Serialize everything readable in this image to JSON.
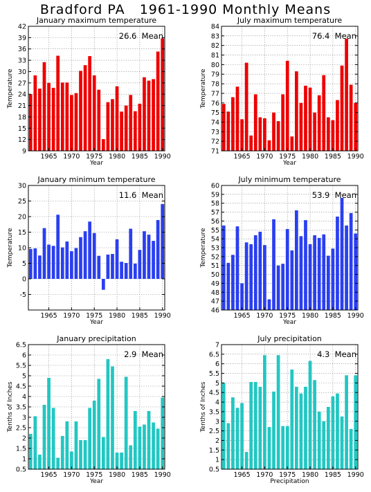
{
  "page_title": "Bradford PA   1961-1990 Monthly Means",
  "chart_data": [
    {
      "type": "bar",
      "title": "January maximum temperature",
      "mean_label": "26.6  Mean",
      "xlabel": "Year",
      "ylabel": "Temperature",
      "color": "#ee0000",
      "ylim": [
        9,
        42
      ],
      "yticks": [
        9,
        12,
        15,
        18,
        21,
        24,
        27,
        30,
        33,
        36,
        39,
        42
      ],
      "ytick_labels": [
        "9",
        "12",
        "15",
        "18",
        "21",
        "24",
        "27",
        "30",
        "33",
        "36",
        "39",
        "42"
      ],
      "xlim": [
        1960.5,
        1990.5
      ],
      "xticks": [
        1965,
        1970,
        1975,
        1980,
        1985,
        1990
      ],
      "xtick_labels": [
        "1965",
        "1970",
        "1975",
        "1980",
        "1985",
        "1990"
      ],
      "years": [
        1961,
        1962,
        1963,
        1964,
        1965,
        1966,
        1967,
        1968,
        1969,
        1970,
        1971,
        1972,
        1973,
        1974,
        1975,
        1976,
        1977,
        1978,
        1979,
        1980,
        1981,
        1982,
        1983,
        1984,
        1985,
        1986,
        1987,
        1988,
        1989,
        1990
      ],
      "values": [
        24,
        29,
        25.5,
        32.5,
        27,
        25.7,
        34.2,
        27.1,
        27.1,
        23.8,
        24.3,
        30.2,
        31.7,
        34.1,
        29,
        25.2,
        12.1,
        21.9,
        22.7,
        26.1,
        19.4,
        21,
        23.8,
        19.5,
        21.5,
        28.5,
        27.6,
        28,
        35.3,
        38.8
      ]
    },
    {
      "type": "bar",
      "title": "July maximum temperature",
      "mean_label": "76.4  Mean",
      "xlabel": "Year",
      "ylabel": "Temperature",
      "color": "#ee0000",
      "ylim": [
        71,
        84
      ],
      "yticks": [
        71,
        72,
        73,
        74,
        75,
        76,
        77,
        78,
        79,
        80,
        81,
        82,
        83,
        84
      ],
      "ytick_labels": [
        "71",
        "72",
        "73",
        "74",
        "75",
        "76",
        "77",
        "78",
        "79",
        "80",
        "81",
        "82",
        "83",
        "84"
      ],
      "xlim": [
        1960.5,
        1990.5
      ],
      "xticks": [
        1965,
        1970,
        1975,
        1980,
        1985,
        1990
      ],
      "xtick_labels": [
        "1965",
        "1970",
        "1975",
        "1980",
        "1985",
        "1990"
      ],
      "years": [
        1961,
        1962,
        1963,
        1964,
        1965,
        1966,
        1967,
        1968,
        1969,
        1970,
        1971,
        1972,
        1973,
        1974,
        1975,
        1976,
        1977,
        1978,
        1979,
        1980,
        1981,
        1982,
        1983,
        1984,
        1985,
        1986,
        1987,
        1988,
        1989,
        1990
      ],
      "values": [
        75.9,
        75.1,
        76.6,
        77.7,
        74.3,
        80.2,
        72.6,
        76.9,
        74.5,
        74.4,
        72.1,
        75,
        74.1,
        76.9,
        80.4,
        72.5,
        79.3,
        76,
        77.8,
        77.6,
        75,
        76.8,
        78.9,
        74.5,
        74.2,
        76.3,
        79.9,
        82.7,
        77.9,
        76
      ]
    },
    {
      "type": "bar",
      "title": "January minimum temperature",
      "mean_label": "11.6  Mean",
      "xlabel": "Year",
      "ylabel": "Temperature",
      "color": "#2a3ff0",
      "ylim": [
        -10,
        30
      ],
      "yticks": [
        -5,
        0,
        5,
        10,
        15,
        20,
        25,
        30
      ],
      "ytick_labels": [
        "-5",
        "0",
        "5",
        "10",
        "15",
        "20",
        "25",
        "30"
      ],
      "xlim": [
        1960.5,
        1990.5
      ],
      "xticks": [
        1965,
        1970,
        1975,
        1980,
        1985,
        1990
      ],
      "xtick_labels": [
        "1965",
        "1970",
        "1975",
        "1980",
        "1985",
        "1990"
      ],
      "years": [
        1961,
        1962,
        1963,
        1964,
        1965,
        1966,
        1967,
        1968,
        1969,
        1970,
        1971,
        1972,
        1973,
        1974,
        1975,
        1976,
        1977,
        1978,
        1979,
        1980,
        1981,
        1982,
        1983,
        1984,
        1985,
        1986,
        1987,
        1988,
        1989,
        1990
      ],
      "values": [
        9.6,
        9.8,
        7.5,
        16.3,
        11,
        10.6,
        20.6,
        10.1,
        12,
        8.9,
        9.9,
        13.4,
        15.3,
        18.4,
        14.7,
        7.4,
        -3.5,
        7.8,
        8,
        12.7,
        5.5,
        5.1,
        16.1,
        4.9,
        9.3,
        15.3,
        14.2,
        12.2,
        18.9,
        24
      ]
    },
    {
      "type": "bar",
      "title": "July minimum temperature",
      "mean_label": "53.9  Mean",
      "xlabel": "Year",
      "ylabel": "Temperature",
      "color": "#2a3ff0",
      "ylim": [
        46,
        60
      ],
      "yticks": [
        46,
        47,
        48,
        49,
        50,
        51,
        52,
        53,
        54,
        55,
        56,
        57,
        58,
        59,
        60
      ],
      "ytick_labels": [
        "46",
        "47",
        "48",
        "49",
        "50",
        "51",
        "52",
        "53",
        "54",
        "55",
        "56",
        "57",
        "58",
        "59",
        "60"
      ],
      "xlim": [
        1960.5,
        1990.5
      ],
      "xticks": [
        1965,
        1970,
        1975,
        1980,
        1985,
        1990
      ],
      "xtick_labels": [
        "1965",
        "1970",
        "1975",
        "1980",
        "1985",
        "1990"
      ],
      "years": [
        1961,
        1962,
        1963,
        1964,
        1965,
        1966,
        1967,
        1968,
        1969,
        1970,
        1971,
        1972,
        1973,
        1974,
        1975,
        1976,
        1977,
        1978,
        1979,
        1980,
        1981,
        1982,
        1983,
        1984,
        1985,
        1986,
        1987,
        1988,
        1989,
        1990
      ],
      "values": [
        55.5,
        51.3,
        52.2,
        55.4,
        49,
        53.6,
        53.4,
        54.4,
        54.8,
        53.3,
        47.2,
        56.2,
        51,
        51.2,
        55.1,
        52.7,
        57.2,
        54.3,
        56.1,
        53.4,
        54.4,
        54.1,
        54.5,
        52.1,
        52.9,
        56.5,
        58.6,
        55.5,
        56.9,
        54.6
      ]
    },
    {
      "type": "bar",
      "title": "January precipitation",
      "mean_label": "2.9  Mean",
      "xlabel": "Year",
      "ylabel": "Tenths of Inches",
      "color": "#22c7c2",
      "ylim": [
        0.5,
        6.5
      ],
      "yticks": [
        0.5,
        1,
        1.5,
        2,
        2.5,
        3,
        3.5,
        4,
        4.5,
        5,
        5.5,
        6,
        6.5
      ],
      "ytick_labels": [
        "0.5",
        "1",
        "1.5",
        "2",
        "2.5",
        "3",
        "3.5",
        "4",
        "4.5",
        "5",
        "5.5",
        "6",
        "6.5"
      ],
      "xlim": [
        1960.5,
        1990.5
      ],
      "xticks": [
        1965,
        1970,
        1975,
        1980,
        1985,
        1990
      ],
      "xtick_labels": [
        "1965",
        "1970",
        "1975",
        "1980",
        "1985",
        "1990"
      ],
      "years": [
        1961,
        1962,
        1963,
        1964,
        1965,
        1966,
        1967,
        1968,
        1969,
        1970,
        1971,
        1972,
        1973,
        1974,
        1975,
        1976,
        1977,
        1978,
        1979,
        1980,
        1981,
        1982,
        1983,
        1984,
        1985,
        1986,
        1987,
        1988,
        1989,
        1990
      ],
      "values": [
        2.2,
        3.05,
        1.2,
        3.6,
        4.9,
        3.45,
        1.05,
        2.1,
        2.8,
        1.35,
        2.8,
        1.9,
        1.9,
        3.45,
        3.8,
        4.85,
        2.05,
        5.8,
        5.45,
        1.3,
        1.3,
        4.95,
        1.65,
        3.3,
        2.55,
        2.65,
        3.3,
        2.75,
        2.45,
        3.95
      ]
    },
    {
      "type": "bar",
      "title": "July precipitation",
      "mean_label": "4.3  Mean",
      "xlabel": "Precipitation",
      "ylabel": "Tenths of Inches",
      "color": "#22c7c2",
      "ylim": [
        0.5,
        7
      ],
      "yticks": [
        0.5,
        1,
        1.5,
        2,
        2.5,
        3,
        3.5,
        4,
        4.5,
        5,
        5.5,
        6,
        6.5,
        7
      ],
      "ytick_labels": [
        "0.5",
        "1",
        "1.5",
        "2",
        "2.5",
        "3",
        "3.5",
        "4",
        "4.5",
        "5",
        "5.5",
        "6",
        "6.5",
        "7"
      ],
      "xlim": [
        1960.5,
        1990.5
      ],
      "xticks": [
        1965,
        1970,
        1975,
        1980,
        1985,
        1990
      ],
      "xtick_labels": [
        "1965",
        "1970",
        "1975",
        "1980",
        "1985",
        "1990"
      ],
      "years": [
        1961,
        1962,
        1963,
        1964,
        1965,
        1966,
        1967,
        1968,
        1969,
        1970,
        1971,
        1972,
        1973,
        1974,
        1975,
        1976,
        1977,
        1978,
        1979,
        1980,
        1981,
        1982,
        1983,
        1984,
        1985,
        1986,
        1987,
        1988,
        1989,
        1990
      ],
      "values": [
        5,
        2.9,
        4.25,
        3.7,
        3.95,
        1.4,
        5.05,
        5.05,
        4.8,
        6.45,
        2.7,
        4.55,
        6.45,
        2.75,
        2.75,
        5.7,
        4.8,
        4.45,
        4.8,
        6.15,
        5.15,
        3.5,
        3,
        3.75,
        4.3,
        4.45,
        3.25,
        5.4,
        2.6,
        5.4
      ]
    }
  ]
}
